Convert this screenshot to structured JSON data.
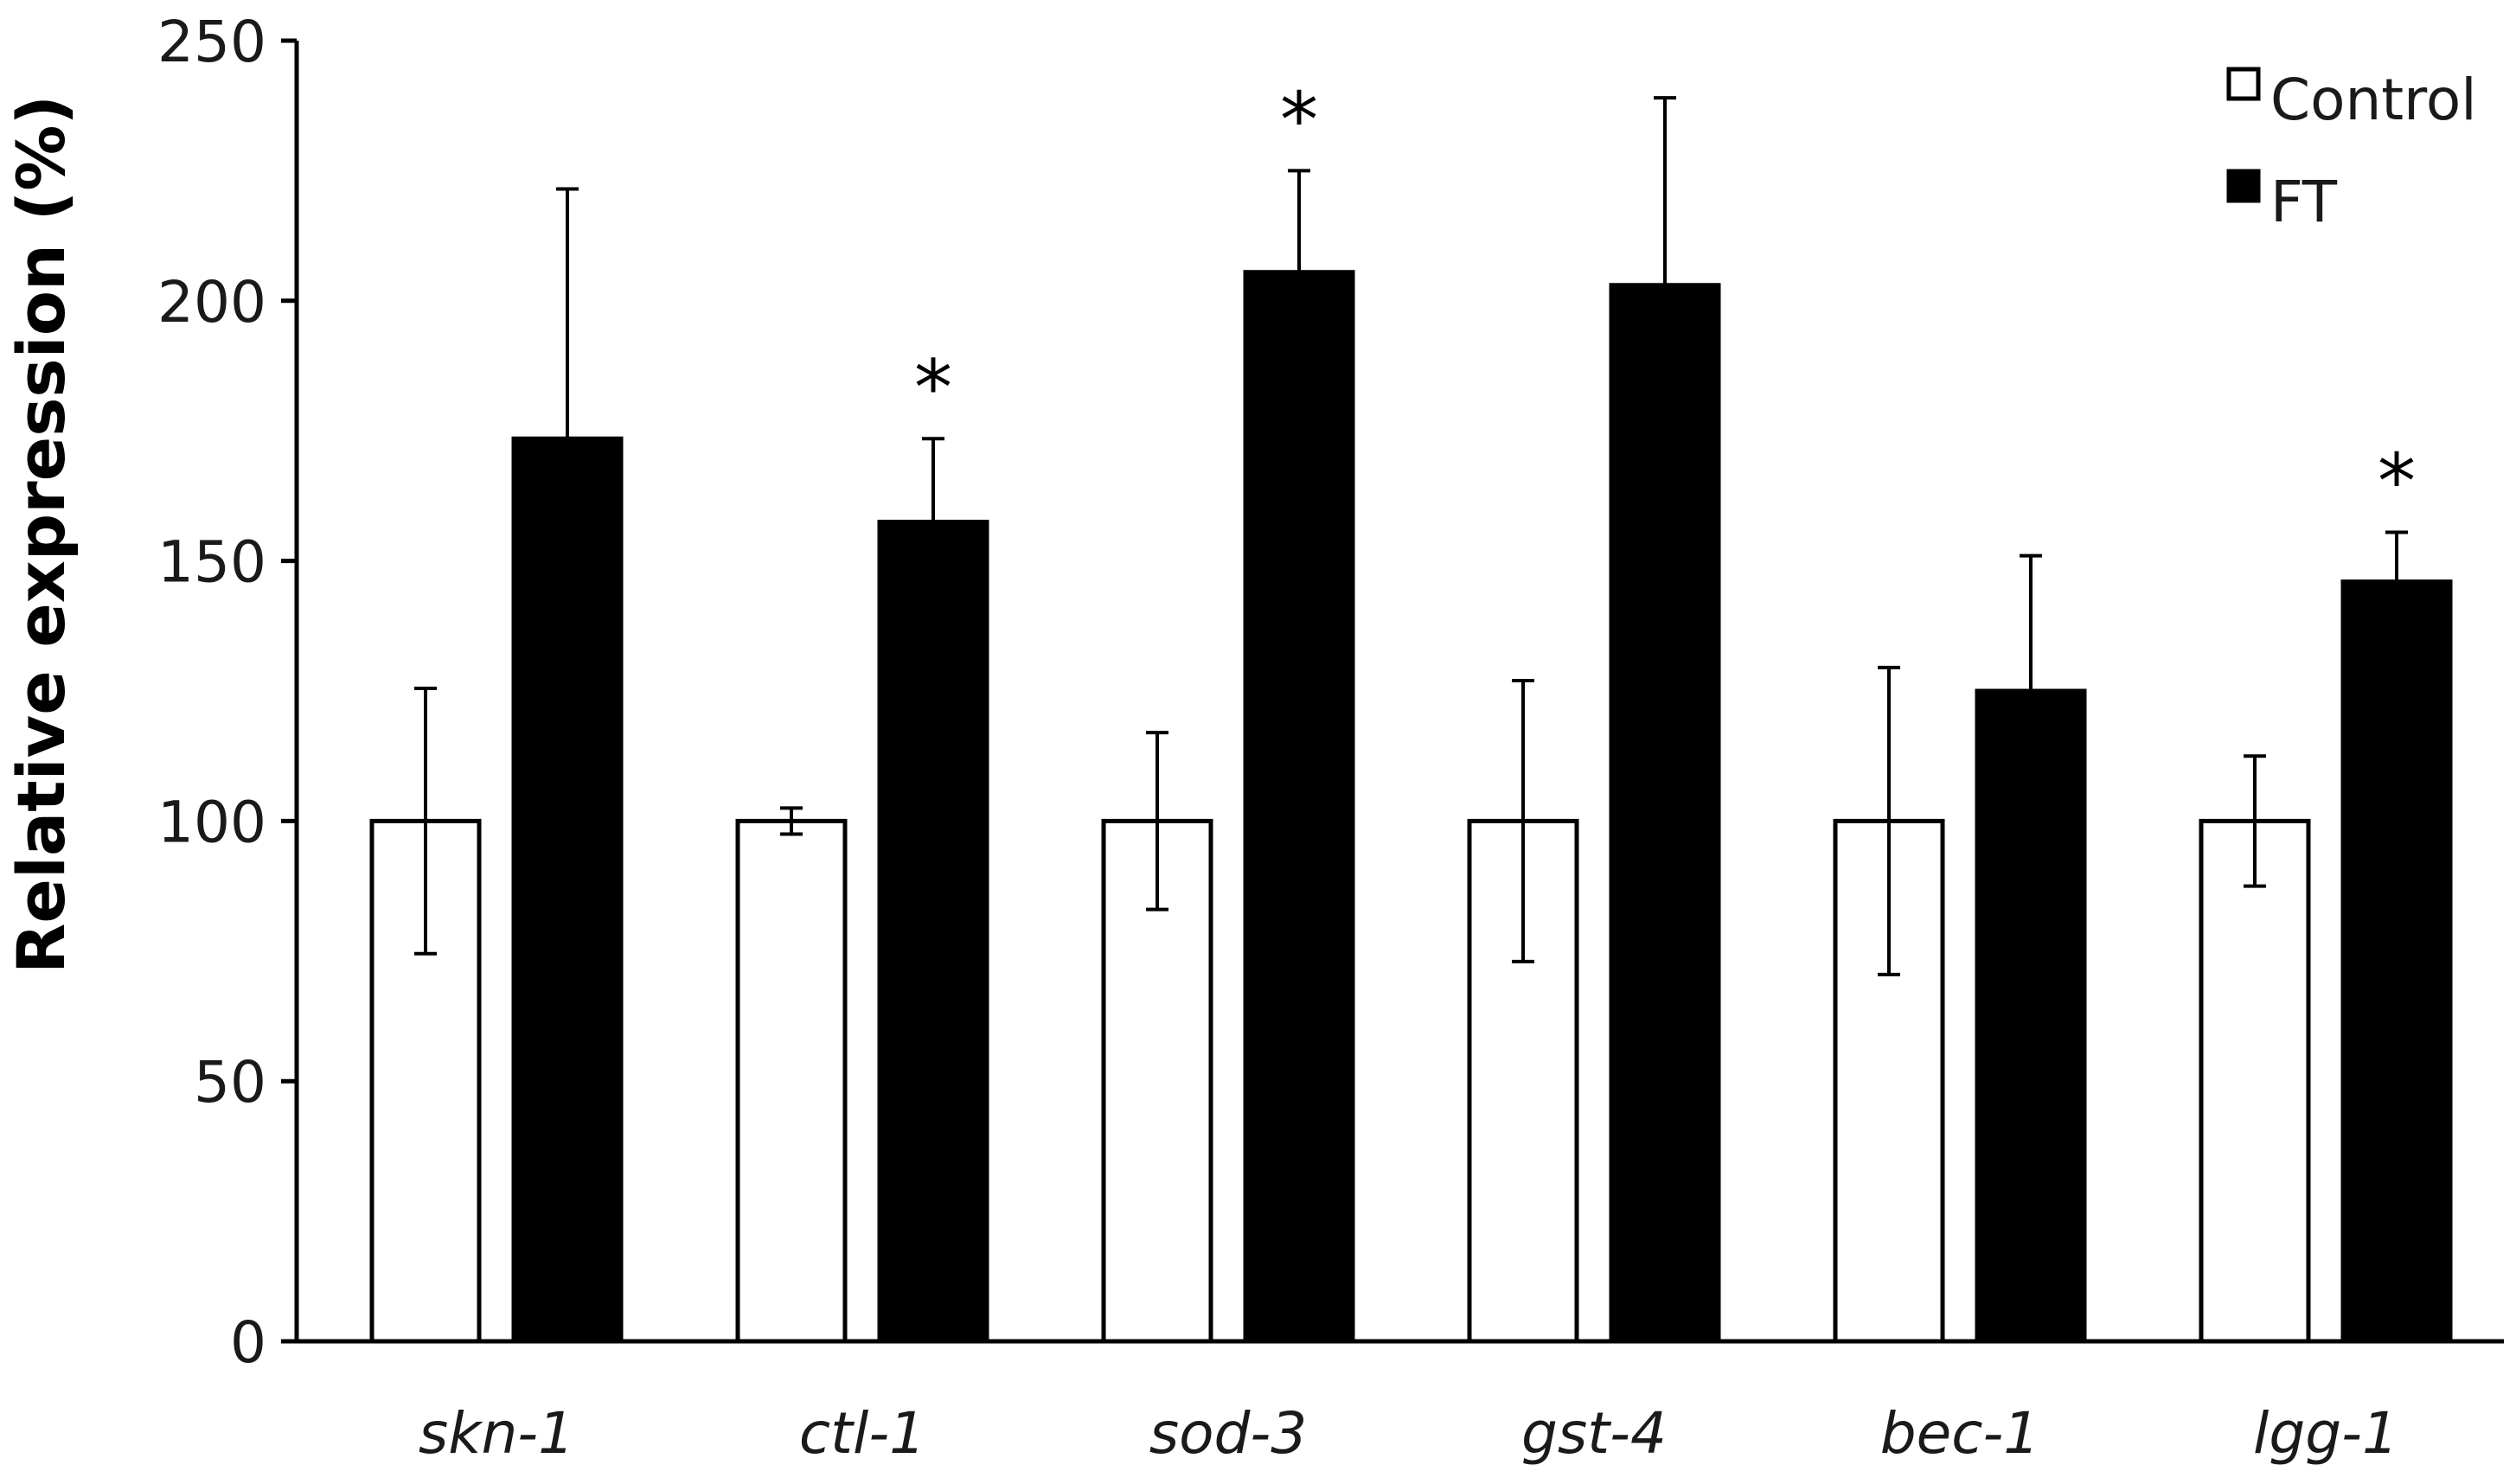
{
  "chart_data": {
    "type": "bar",
    "title": "",
    "xlabel": "",
    "ylabel": "Relative expression (%)",
    "ylim": [
      0,
      250
    ],
    "yticks": [
      "0",
      "50",
      "100",
      "150",
      "200",
      "250"
    ],
    "grid": false,
    "legend_position": "top-right",
    "categories": [
      "skn-1",
      "ctl-1",
      "sod-3",
      "gst-4",
      "bec-1",
      "lgg-1"
    ],
    "series": [
      {
        "name": "Control",
        "fill": "#ffffff",
        "values": [
          100,
          100,
          100,
          100,
          100,
          100
        ],
        "errors": [
          25.5,
          2.5,
          17,
          27,
          29.5,
          12.5
        ]
      },
      {
        "name": "FT",
        "fill": "#000000",
        "values": [
          173.5,
          157.5,
          205.5,
          203,
          125,
          146
        ],
        "errors": [
          48,
          16,
          19.5,
          36,
          26,
          9.5
        ]
      }
    ],
    "significance": [
      "",
      "*",
      "*",
      "",
      "",
      "*"
    ]
  },
  "colors": {
    "axis": "#000000",
    "text": "#1a1a1a"
  }
}
